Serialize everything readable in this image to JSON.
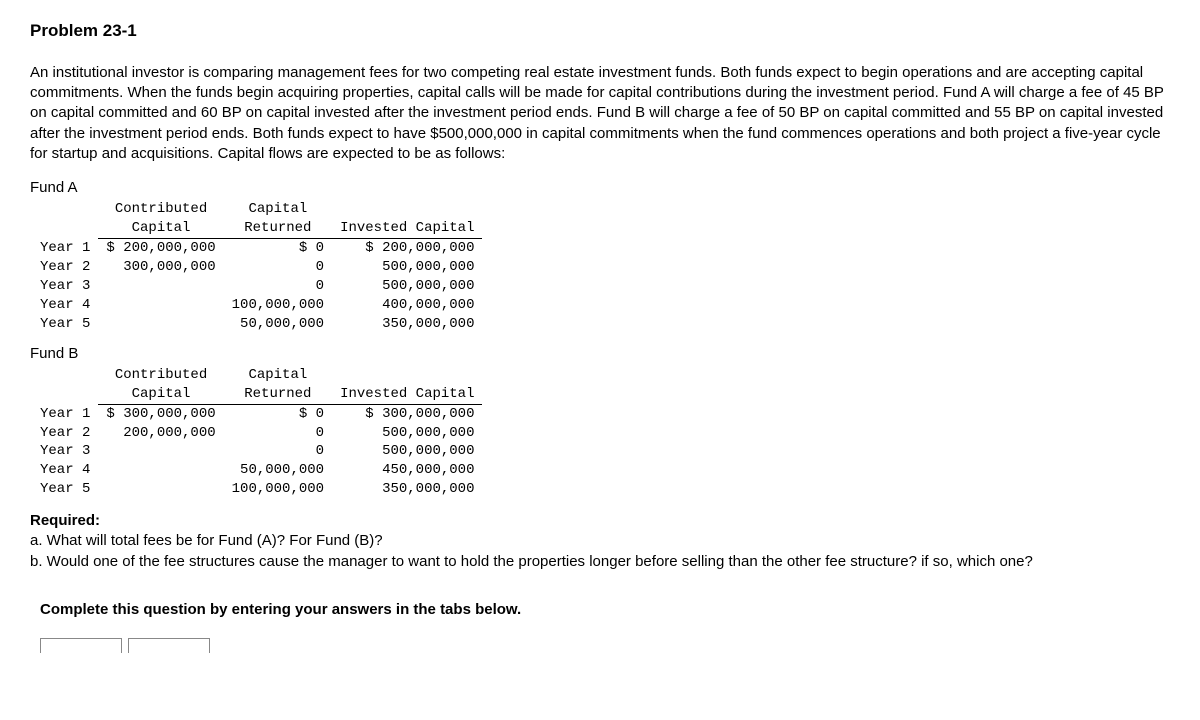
{
  "title": "Problem 23-1",
  "intro": "An institutional investor is comparing management fees for two competing real estate investment funds. Both funds expect to begin operations and are accepting capital commitments. When the funds begin acquiring properties, capital calls will be made for capital contributions during the investment period. Fund A will charge a fee of 45 BP on capital committed and 60 BP on capital invested after the investment period ends. Fund B will charge a fee of 50 BP on capital committed and 55 BP on capital invested after the investment period ends. Both funds expect to have $500,000,000 in capital commitments when the fund commences operations and both project a five-year cycle for startup and acquisitions. Capital flows are expected to be as follows:",
  "fundA": {
    "label": "Fund A",
    "headers": [
      "",
      "Contributed\nCapital",
      "Capital\nReturned",
      "Invested Capital"
    ],
    "rows": [
      [
        "Year 1",
        "$ 200,000,000",
        "$ 0",
        "$ 200,000,000"
      ],
      [
        "Year 2",
        "300,000,000",
        "0",
        "500,000,000"
      ],
      [
        "Year 3",
        "",
        "0",
        "500,000,000"
      ],
      [
        "Year 4",
        "",
        "100,000,000",
        "400,000,000"
      ],
      [
        "Year 5",
        "",
        "50,000,000",
        "350,000,000"
      ]
    ]
  },
  "fundB": {
    "label": "Fund B",
    "headers": [
      "",
      "Contributed\nCapital",
      "Capital\nReturned",
      "Invested Capital"
    ],
    "rows": [
      [
        "Year 1",
        "$ 300,000,000",
        "$ 0",
        "$ 300,000,000"
      ],
      [
        "Year 2",
        "200,000,000",
        "0",
        "500,000,000"
      ],
      [
        "Year 3",
        "",
        "0",
        "500,000,000"
      ],
      [
        "Year 4",
        "",
        "50,000,000",
        "450,000,000"
      ],
      [
        "Year 5",
        "",
        "100,000,000",
        "350,000,000"
      ]
    ]
  },
  "required": {
    "heading": "Required:",
    "a": "a. What will total fees be for Fund (A)? For Fund (B)?",
    "b": "b. Would one of the fee structures cause the manager to want to hold the properties longer before selling than the other fee structure? if so, which one?"
  },
  "instruction": "Complete this question by entering your answers in the tabs below."
}
